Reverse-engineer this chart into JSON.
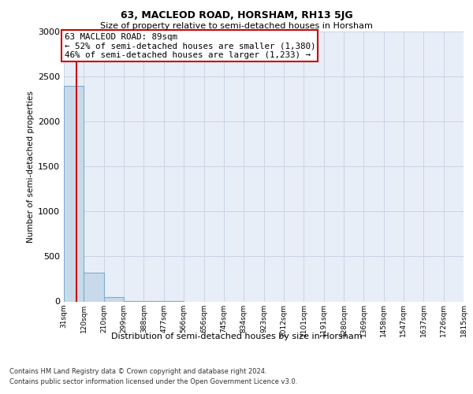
{
  "title": "63, MACLEOD ROAD, HORSHAM, RH13 5JG",
  "subtitle": "Size of property relative to semi-detached houses in Horsham",
  "xlabel": "Distribution of semi-detached houses by size in Horsham",
  "ylabel": "Number of semi-detached properties",
  "annotation_line1": "63 MACLEOD ROAD: 89sqm",
  "annotation_line2": "← 52% of semi-detached houses are smaller (1,380)",
  "annotation_line3": "46% of semi-detached houses are larger (1,233) →",
  "bin_labels": [
    "31sqm",
    "120sqm",
    "210sqm",
    "299sqm",
    "388sqm",
    "477sqm",
    "566sqm",
    "656sqm",
    "745sqm",
    "834sqm",
    "923sqm",
    "1012sqm",
    "1101sqm",
    "1191sqm",
    "1280sqm",
    "1369sqm",
    "1458sqm",
    "1547sqm",
    "1637sqm",
    "1726sqm",
    "1815sqm"
  ],
  "bin_edges": [
    31,
    120,
    210,
    299,
    388,
    477,
    566,
    656,
    745,
    834,
    923,
    1012,
    1101,
    1191,
    1280,
    1369,
    1458,
    1547,
    1637,
    1726,
    1815
  ],
  "bar_heights": [
    2400,
    320,
    50,
    5,
    2,
    1,
    0,
    0,
    0,
    0,
    0,
    0,
    0,
    0,
    0,
    0,
    0,
    0,
    0,
    0
  ],
  "bar_color": "#c8daea",
  "bar_edge_color": "#7aaed0",
  "vline_color": "#cc0000",
  "vline_x": 89,
  "ylim": [
    0,
    3000
  ],
  "yticks": [
    0,
    500,
    1000,
    1500,
    2000,
    2500,
    3000
  ],
  "grid_color": "#c8d4e4",
  "background_color": "#e8eef8",
  "annotation_box_color": "#cc0000",
  "footer_line1": "Contains HM Land Registry data © Crown copyright and database right 2024.",
  "footer_line2": "Contains public sector information licensed under the Open Government Licence v3.0."
}
